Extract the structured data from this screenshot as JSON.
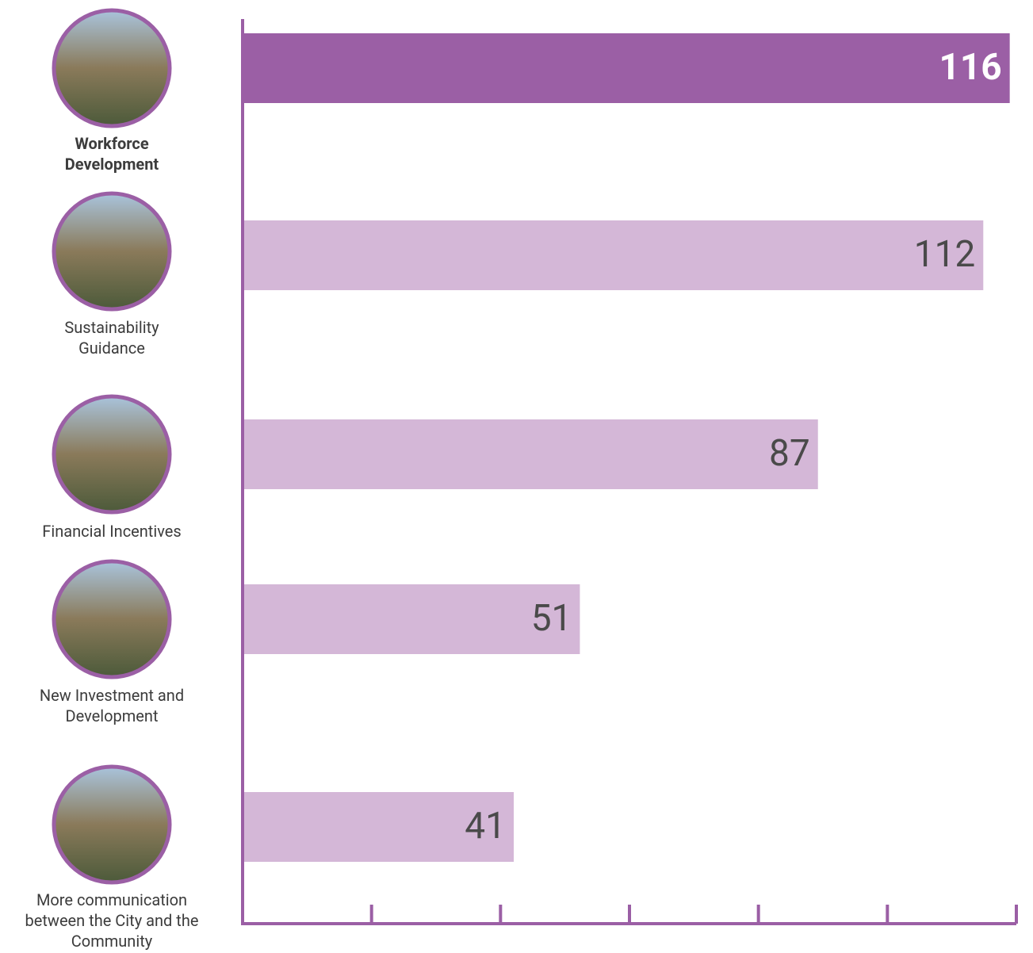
{
  "chart_data": {
    "type": "bar",
    "orientation": "horizontal",
    "categories": [
      "Workforce Development",
      "Sustainability Guidance",
      "Financial Incentives",
      "New Investment and Development",
      "More communication between the City and the Community"
    ],
    "values": [
      116,
      112,
      87,
      51,
      41
    ],
    "colors": [
      "#9b5fa5",
      "#d4b7d7",
      "#d4b7d7",
      "#d4b7d7",
      "#d4b7d7"
    ],
    "highlight_index": 0,
    "xlim": [
      0,
      117
    ],
    "xticks": [
      0,
      19.5,
      39,
      58.5,
      78,
      97.5,
      117
    ]
  }
}
